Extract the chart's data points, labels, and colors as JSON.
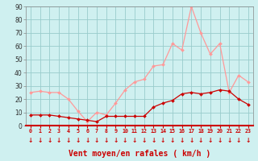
{
  "hours": [
    0,
    1,
    2,
    3,
    4,
    5,
    6,
    7,
    8,
    9,
    10,
    11,
    12,
    13,
    14,
    15,
    16,
    17,
    18,
    19,
    20,
    21,
    22,
    23
  ],
  "wind_avg": [
    8,
    8,
    8,
    7,
    6,
    5,
    4,
    3,
    7,
    7,
    7,
    7,
    7,
    14,
    17,
    19,
    24,
    25,
    24,
    25,
    27,
    26,
    20,
    16
  ],
  "wind_gust": [
    25,
    26,
    25,
    25,
    20,
    11,
    3,
    10,
    8,
    17,
    27,
    33,
    35,
    45,
    46,
    62,
    57,
    90,
    70,
    54,
    62,
    25,
    38,
    33
  ],
  "bg_color": "#cff0f0",
  "grid_color": "#99cccc",
  "line_avg_color": "#cc0000",
  "line_gust_color": "#ff9999",
  "arrow_color": "#cc0000",
  "xlabel": "Vent moyen/en rafales ( km/h )",
  "ylim": [
    0,
    90
  ],
  "yticks": [
    0,
    10,
    20,
    30,
    40,
    50,
    60,
    70,
    80,
    90
  ],
  "label_fontsize": 7
}
